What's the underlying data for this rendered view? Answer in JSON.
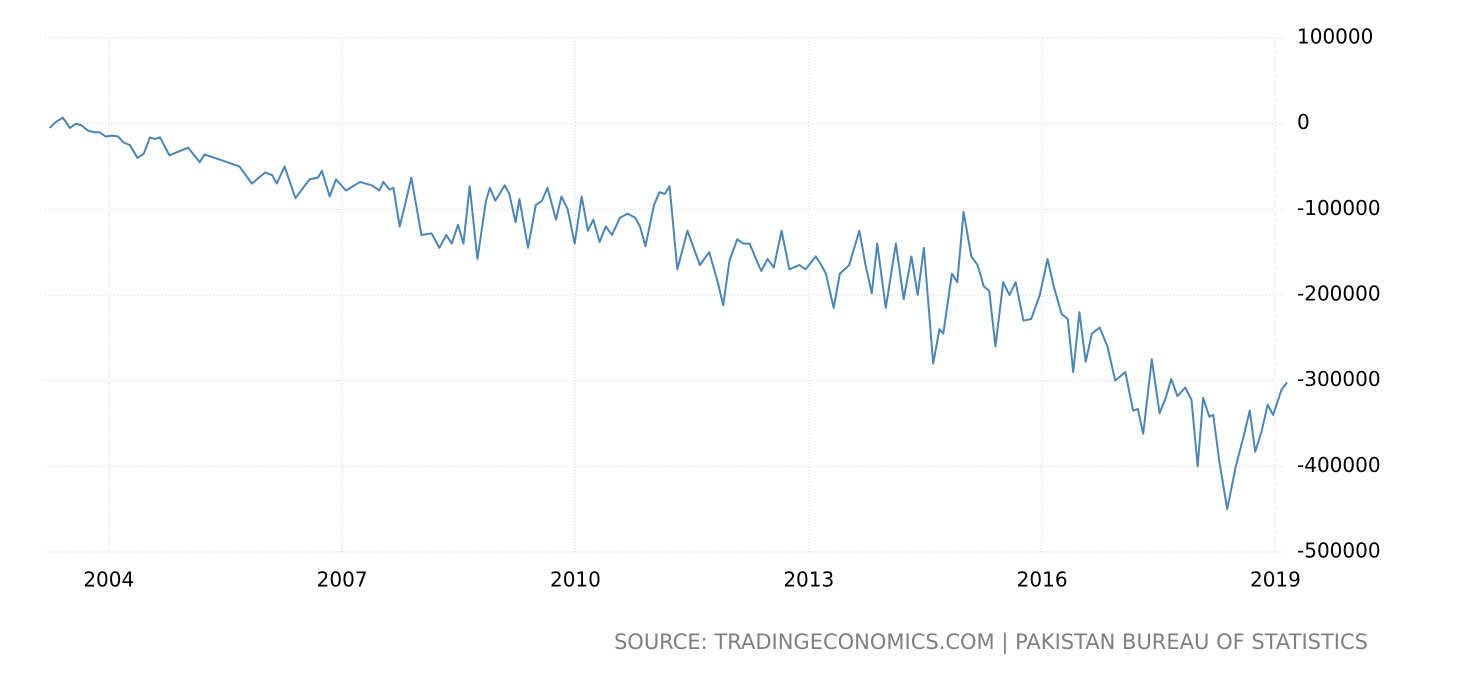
{
  "chart_data": {
    "type": "line",
    "source": "SOURCE: TRADINGECONOMICS.COM | PAKISTAN BUREAU OF STATISTICS",
    "xlim": [
      2003.18,
      2019.2
    ],
    "xticks": [
      2004,
      2007,
      2010,
      2013,
      2016,
      2019
    ],
    "ylim": [
      -500000,
      100000
    ],
    "yticks": [
      100000,
      0,
      -100000,
      -200000,
      -300000,
      -400000,
      -500000
    ],
    "grid": true,
    "series": [
      {
        "color": "#4a86b8",
        "x": [
          2003.24,
          2003.32,
          2003.41,
          2003.5,
          2003.58,
          2003.65,
          2003.73,
          2003.81,
          2003.88,
          2003.96,
          2004.04,
          2004.12,
          2004.19,
          2004.27,
          2004.37,
          2004.45,
          2004.53,
          2004.59,
          2004.66,
          2004.78,
          2005.02,
          2005.17,
          2005.23,
          2005.43,
          2005.68,
          2005.84,
          2006.01,
          2006.1,
          2006.16,
          2006.26,
          2006.4,
          2006.58,
          2006.69,
          2006.74,
          2006.84,
          2006.92,
          2007.05,
          2007.23,
          2007.38,
          2007.48,
          2007.53,
          2007.61,
          2007.66,
          2007.74,
          2007.8,
          2007.89,
          2008.02,
          2008.15,
          2008.25,
          2008.34,
          2008.41,
          2008.49,
          2008.56,
          2008.64,
          2008.74,
          2008.85,
          2008.9,
          2008.97,
          2009.09,
          2009.15,
          2009.23,
          2009.28,
          2009.39,
          2009.49,
          2009.57,
          2009.64,
          2009.75,
          2009.82,
          2009.9,
          2009.99,
          2010.08,
          2010.16,
          2010.23,
          2010.31,
          2010.39,
          2010.47,
          2010.57,
          2010.67,
          2010.77,
          2010.83,
          2010.9,
          2011.01,
          2011.08,
          2011.15,
          2011.21,
          2011.31,
          2011.44,
          2011.52,
          2011.6,
          2011.72,
          2011.83,
          2011.9,
          2011.98,
          2012.08,
          2012.16,
          2012.24,
          2012.34,
          2012.39,
          2012.47,
          2012.55,
          2012.65,
          2012.75,
          2012.88,
          2012.96,
          2013.09,
          2013.16,
          2013.22,
          2013.32,
          2013.4,
          2013.52,
          2013.65,
          2013.73,
          2013.81,
          2013.88,
          2013.99,
          2014.12,
          2014.22,
          2014.32,
          2014.4,
          2014.48,
          2014.6,
          2014.68,
          2014.73,
          2014.84,
          2014.91,
          2014.99,
          2015.09,
          2015.17,
          2015.25,
          2015.32,
          2015.4,
          2015.5,
          2015.58,
          2015.66,
          2015.76,
          2015.86,
          2015.97,
          2016.07,
          2016.15,
          2016.25,
          2016.33,
          2016.4,
          2016.48,
          2016.56,
          2016.64,
          2016.74,
          2016.84,
          2016.94,
          2017.07,
          2017.17,
          2017.23,
          2017.3,
          2017.41,
          2017.51,
          2017.59,
          2017.66,
          2017.74,
          2017.84,
          2017.92,
          2018.0,
          2018.07,
          2018.15,
          2018.2,
          2018.28,
          2018.38,
          2018.49,
          2018.59,
          2018.67,
          2018.74,
          2018.82,
          2018.9,
          2018.97,
          2019.08,
          2019.15
        ],
        "values": [
          -5000,
          2000,
          7000,
          -5000,
          0,
          -2000,
          -8000,
          -10000,
          -10000,
          -15000,
          -14000,
          -15000,
          -22000,
          -25000,
          -40000,
          -35000,
          -16000,
          -18000,
          -16000,
          -37000,
          -28000,
          -45000,
          -36000,
          -42000,
          -50000,
          -70000,
          -57000,
          -60000,
          -70000,
          -50000,
          -87000,
          -65000,
          -63000,
          -55000,
          -85000,
          -65000,
          -78000,
          -68000,
          -72000,
          -78000,
          -68000,
          -77000,
          -75000,
          -120000,
          -98000,
          -63000,
          -130000,
          -128000,
          -145000,
          -130000,
          -140000,
          -118000,
          -140000,
          -73000,
          -158000,
          -90000,
          -75000,
          -90000,
          -72000,
          -82000,
          -115000,
          -88000,
          -145000,
          -95000,
          -90000,
          -75000,
          -112000,
          -85000,
          -100000,
          -140000,
          -85000,
          -125000,
          -112000,
          -138000,
          -120000,
          -130000,
          -110000,
          -105000,
          -110000,
          -120000,
          -143000,
          -95000,
          -80000,
          -82000,
          -73000,
          -170000,
          -125000,
          -145000,
          -165000,
          -150000,
          -185000,
          -212000,
          -160000,
          -135000,
          -140000,
          -140000,
          -162000,
          -172000,
          -158000,
          -168000,
          -125000,
          -170000,
          -165000,
          -170000,
          -155000,
          -165000,
          -175000,
          -215000,
          -175000,
          -165000,
          -125000,
          -165000,
          -198000,
          -140000,
          -215000,
          -140000,
          -205000,
          -155000,
          -200000,
          -145000,
          -280000,
          -240000,
          -245000,
          -175000,
          -185000,
          -103000,
          -155000,
          -165000,
          -190000,
          -195000,
          -260000,
          -185000,
          -200000,
          -185000,
          -230000,
          -228000,
          -200000,
          -158000,
          -190000,
          -222000,
          -228000,
          -290000,
          -220000,
          -278000,
          -245000,
          -238000,
          -260000,
          -300000,
          -290000,
          -335000,
          -333000,
          -362000,
          -275000,
          -338000,
          -320000,
          -298000,
          -318000,
          -308000,
          -322000,
          -400000,
          -320000,
          -342000,
          -340000,
          -395000,
          -450000,
          -400000,
          -365000,
          -335000,
          -383000,
          -360000,
          -328000,
          -340000,
          -310000,
          -302000
        ]
      }
    ]
  }
}
